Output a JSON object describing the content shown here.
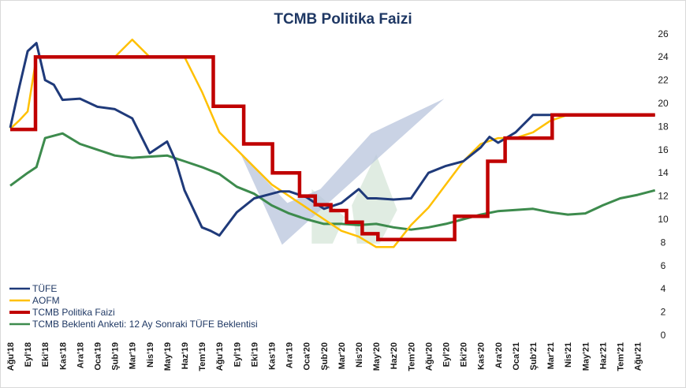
{
  "colors": {
    "tufe": "#1f3a7a",
    "aofm": "#ffc000",
    "policy": "#c00000",
    "expectation": "#3d8b4d",
    "watermark_blue": "#b8c4dc",
    "watermark_green": "#d3e4d6"
  },
  "chart_data": {
    "type": "line",
    "title": "TCMB Politika Faizi",
    "xlabel": "",
    "ylabel": "",
    "ylim": [
      0,
      26
    ],
    "yticks": [
      0,
      2,
      4,
      6,
      8,
      10,
      12,
      14,
      16,
      18,
      20,
      22,
      24,
      26
    ],
    "grid": false,
    "legend_position": "bottom-left",
    "x_tick_labels": [
      "Ağu'18",
      "Eyl'18",
      "Eki'18",
      "Kas'18",
      "Ara'18",
      "Oca'19",
      "Şub'19",
      "Mar'19",
      "Nis'19",
      "May'19",
      "Haz'19",
      "Tem'19",
      "Ağu'19",
      "Eyl'19",
      "Eki'19",
      "Kas'19",
      "Ara'19",
      "Oca'20",
      "Şub'20",
      "Mar'20",
      "Nis'20",
      "May'20",
      "Haz'20",
      "Tem'20",
      "Ağu'20",
      "Eyl'20",
      "Eki'20",
      "Kas'20",
      "Ara'20",
      "Oca'21",
      "Şub'21",
      "Mar'21",
      "Nis'21",
      "May'21",
      "Haz'21",
      "Tem'21",
      "Ağu'21"
    ],
    "series": [
      {
        "name": "TÜFE",
        "key": "tufe",
        "step": false,
        "x": [
          0,
          0.5,
          1,
          1.5,
          2,
          2.5,
          3,
          4,
          5,
          6,
          7,
          8,
          9,
          9.5,
          10,
          11,
          11.5,
          12,
          13,
          14,
          15,
          15.5,
          16,
          17,
          18,
          19,
          20,
          20.5,
          21,
          22,
          23,
          24,
          25,
          26,
          26.5,
          27,
          27.5,
          28,
          29,
          30,
          31,
          32,
          33,
          34,
          35,
          36,
          37
        ],
        "y": [
          17.9,
          21.3,
          24.5,
          25.2,
          22.0,
          21.6,
          20.3,
          20.4,
          19.7,
          19.5,
          18.7,
          15.7,
          16.7,
          15.0,
          12.5,
          9.3,
          9.0,
          8.6,
          10.6,
          11.8,
          12.2,
          12.4,
          12.4,
          11.9,
          10.9,
          11.4,
          12.6,
          11.8,
          11.8,
          11.7,
          11.8,
          14.0,
          14.6,
          15.0,
          15.6,
          16.2,
          17.1,
          16.6,
          17.5,
          19.0,
          19.0,
          19.0,
          19.0,
          19.0,
          19.0,
          19.0,
          19.0
        ]
      },
      {
        "name": "AOFM",
        "key": "aofm",
        "step": false,
        "x": [
          0,
          0.5,
          1,
          1.5,
          2,
          3,
          4,
          5,
          6,
          7,
          8,
          9,
          10,
          11,
          12,
          13,
          14,
          15,
          16,
          17,
          18,
          19,
          20,
          21,
          22,
          23,
          24,
          25,
          26,
          27,
          28,
          29,
          30,
          31,
          32,
          33,
          34,
          35,
          36,
          37
        ],
        "y": [
          17.8,
          18.5,
          19.3,
          24.0,
          24.0,
          24.0,
          24.0,
          24.0,
          24.0,
          25.5,
          24.0,
          24.0,
          24.0,
          21.0,
          17.5,
          16.0,
          14.5,
          13.0,
          12.0,
          11.0,
          10.0,
          9.0,
          8.5,
          7.6,
          7.6,
          9.5,
          11.0,
          13.0,
          15.0,
          16.5,
          17.0,
          17.0,
          17.5,
          18.5,
          19.0,
          19.0,
          19.0,
          19.0,
          19.0,
          19.0
        ]
      },
      {
        "name": "TCMB Politika Faizi",
        "key": "policy",
        "step": true,
        "x": [
          0,
          1.45,
          1.45,
          11.65,
          11.65,
          13.4,
          13.4,
          15.05,
          15.05,
          16.6,
          16.6,
          17.5,
          17.5,
          18.4,
          18.4,
          19.3,
          19.3,
          20.2,
          20.2,
          21.1,
          21.1,
          25.5,
          25.5,
          27.4,
          27.4,
          28.4,
          28.4,
          31.1,
          31.1,
          37
        ],
        "y": [
          17.75,
          17.75,
          24.0,
          24.0,
          19.75,
          19.75,
          16.5,
          16.5,
          14.0,
          14.0,
          12.0,
          12.0,
          11.25,
          11.25,
          10.75,
          10.75,
          9.75,
          9.75,
          8.75,
          8.75,
          8.25,
          8.25,
          10.25,
          10.25,
          15.0,
          15.0,
          17.0,
          17.0,
          19.0,
          19.0
        ]
      },
      {
        "name": "TCMB Beklenti Anketi: 12 Ay Sonraki TÜFE Beklentisi",
        "key": "expectation",
        "step": false,
        "x": [
          0,
          1,
          1.5,
          2,
          3,
          4,
          5,
          6,
          7,
          8,
          9,
          10,
          11,
          12,
          13,
          14,
          15,
          16,
          17,
          18,
          19,
          20,
          21,
          22,
          23,
          24,
          25,
          26,
          27,
          28,
          29,
          30,
          31,
          32,
          33,
          34,
          35,
          36,
          37
        ],
        "y": [
          12.9,
          14.0,
          14.5,
          17.0,
          17.4,
          16.5,
          16.0,
          15.5,
          15.3,
          15.4,
          15.5,
          15.0,
          14.5,
          13.9,
          12.8,
          12.2,
          11.2,
          10.5,
          10.0,
          9.6,
          9.6,
          9.5,
          9.6,
          9.3,
          9.1,
          9.3,
          9.6,
          10.0,
          10.4,
          10.7,
          10.8,
          10.9,
          10.6,
          10.4,
          10.5,
          11.2,
          11.8,
          12.1,
          12.5
        ]
      }
    ]
  }
}
